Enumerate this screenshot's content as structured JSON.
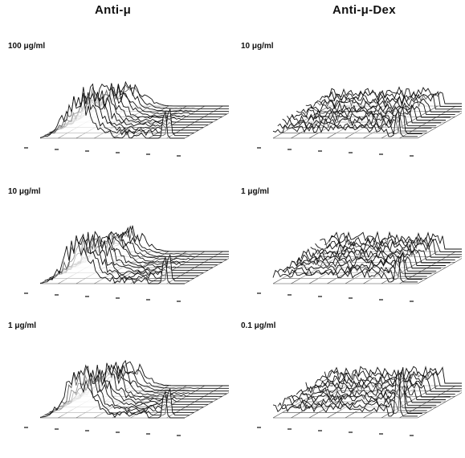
{
  "column_titles": {
    "left": "Anti-μ",
    "right": "Anti-μ-Dex"
  },
  "panels": [
    {
      "label": "100 μg/ml",
      "column": "left",
      "row": 0,
      "shape": "left-ridge"
    },
    {
      "label": "10 μg/ml",
      "column": "right",
      "row": 0,
      "shape": "spread"
    },
    {
      "label": "10 μg/ml",
      "column": "left",
      "row": 1,
      "shape": "left-ridge"
    },
    {
      "label": "1 μg/ml",
      "column": "right",
      "row": 1,
      "shape": "spread"
    },
    {
      "label": "1 μg/ml",
      "column": "left",
      "row": 2,
      "shape": "left-ridge"
    },
    {
      "label": "0.1 μg/ml",
      "column": "right",
      "row": 2,
      "shape": "spread-peak"
    }
  ],
  "colors": {
    "ink": "#111111",
    "grid": "#444444",
    "background": "#ffffff"
  }
}
